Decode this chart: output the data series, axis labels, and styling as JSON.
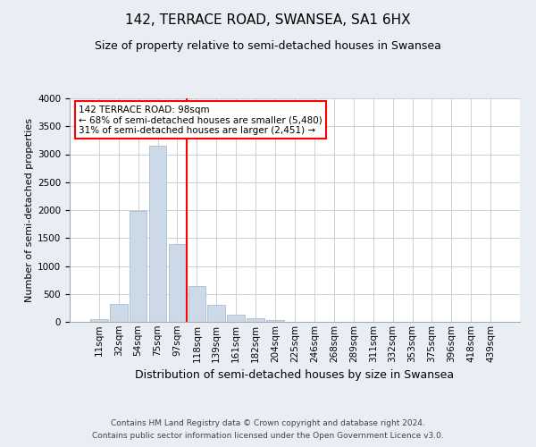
{
  "title": "142, TERRACE ROAD, SWANSEA, SA1 6HX",
  "subtitle": "Size of property relative to semi-detached houses in Swansea",
  "xlabel": "Distribution of semi-detached houses by size in Swansea",
  "ylabel": "Number of semi-detached properties",
  "footnote1": "Contains HM Land Registry data © Crown copyright and database right 2024.",
  "footnote2": "Contains public sector information licensed under the Open Government Licence v3.0.",
  "bar_labels": [
    "11sqm",
    "32sqm",
    "54sqm",
    "75sqm",
    "97sqm",
    "118sqm",
    "139sqm",
    "161sqm",
    "182sqm",
    "204sqm",
    "225sqm",
    "246sqm",
    "268sqm",
    "289sqm",
    "311sqm",
    "332sqm",
    "353sqm",
    "375sqm",
    "396sqm",
    "418sqm",
    "439sqm"
  ],
  "bar_values": [
    50,
    320,
    1980,
    3160,
    1390,
    640,
    310,
    135,
    70,
    30,
    5,
    5,
    0,
    0,
    0,
    0,
    0,
    0,
    0,
    0,
    0
  ],
  "bar_color": "#ccd9e8",
  "bar_edge_color": "#aabccc",
  "property_line_color": "red",
  "annotation_title": "142 TERRACE ROAD: 98sqm",
  "annotation_line1": "← 68% of semi-detached houses are smaller (5,480)",
  "annotation_line2": "31% of semi-detached houses are larger (2,451) →",
  "annotation_box_color": "white",
  "annotation_box_edge": "red",
  "ylim": [
    0,
    4000
  ],
  "yticks": [
    0,
    500,
    1000,
    1500,
    2000,
    2500,
    3000,
    3500,
    4000
  ],
  "background_color": "#e8eef4",
  "plot_background": "white",
  "grid_color": "#c8d0dc",
  "title_fontsize": 11,
  "subtitle_fontsize": 9,
  "xlabel_fontsize": 9,
  "ylabel_fontsize": 8,
  "tick_fontsize": 7.5,
  "footnote_fontsize": 6.5
}
